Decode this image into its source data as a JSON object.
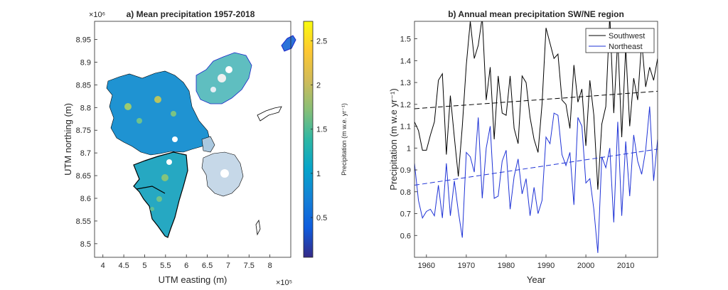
{
  "chart_data": [
    {
      "type": "heatmap",
      "title": "a) Mean precipitation 1957-2018",
      "xlabel": "UTM easting (m)",
      "ylabel": "UTM northing (m)",
      "x_exponent": "×10⁵",
      "y_exponent": "×10⁶",
      "xlim": [
        3.8,
        8.5
      ],
      "ylim": [
        8.47,
        8.99
      ],
      "xticks": [
        "4",
        "4.5",
        "5",
        "5.5",
        "6",
        "6.5",
        "7",
        "7.5",
        "8"
      ],
      "yticks": [
        "8.5",
        "8.55",
        "8.6",
        "8.65",
        "8.7",
        "8.75",
        "8.8",
        "8.85",
        "8.9",
        "8.95"
      ],
      "colorbar": {
        "label": "Precipitation (m w.e. yr⁻¹)",
        "range": [
          0.05,
          2.72
        ],
        "ticks": [
          "0.5",
          "1",
          "1.5",
          "2",
          "2.5"
        ],
        "colormap": "parula",
        "colors": [
          "#352a87",
          "#0f5cdd",
          "#1481d6",
          "#06a4ca",
          "#2eb7a4",
          "#87bf77",
          "#d1bb59",
          "#fec832",
          "#f9fb0e"
        ]
      },
      "grid": false
    },
    {
      "type": "line",
      "title": "b) Annual mean precipitation SW/NE region",
      "xlabel": "Year",
      "ylabel": "Precipitation (m w.e yr⁻¹)",
      "xlim": [
        1957,
        2018
      ],
      "ylim": [
        0.5,
        1.58
      ],
      "xticks": [
        "1960",
        "1970",
        "1980",
        "1990",
        "2000",
        "2010"
      ],
      "yticks": [
        "0.6",
        "0.7",
        "0.8",
        "0.9",
        "1",
        "1.1",
        "1.2",
        "1.3",
        "1.4",
        "1.5"
      ],
      "grid": false,
      "legend_position": "top-right",
      "x": [
        1957,
        1958,
        1959,
        1960,
        1961,
        1962,
        1963,
        1964,
        1965,
        1966,
        1967,
        1968,
        1969,
        1970,
        1971,
        1972,
        1973,
        1974,
        1975,
        1976,
        1977,
        1978,
        1979,
        1980,
        1981,
        1982,
        1983,
        1984,
        1985,
        1986,
        1987,
        1988,
        1989,
        1990,
        1991,
        1992,
        1993,
        1994,
        1995,
        1996,
        1997,
        1998,
        1999,
        2000,
        2001,
        2002,
        2003,
        2004,
        2005,
        2006,
        2007,
        2008,
        2009,
        2010,
        2011,
        2012,
        2013,
        2014,
        2015,
        2016,
        2017,
        2018
      ],
      "series": [
        {
          "name": "Southwest",
          "color": "#000000",
          "values": [
            1.12,
            1.08,
            0.99,
            0.99,
            1.06,
            1.12,
            1.31,
            1.34,
            0.97,
            1.24,
            1.05,
            0.87,
            1.1,
            1.38,
            1.58,
            1.41,
            1.47,
            1.6,
            1.22,
            1.37,
            1.04,
            1.33,
            1.16,
            1.15,
            1.33,
            1.09,
            1.02,
            1.33,
            1.3,
            1.14,
            1.04,
            0.98,
            1.2,
            1.55,
            1.48,
            1.41,
            1.43,
            1.22,
            1.2,
            1.09,
            1.38,
            1.21,
            1.27,
            1.01,
            1.31,
            1.15,
            0.81,
            1.11,
            1.19,
            1.61,
            1.16,
            1.5,
            1.05,
            1.46,
            1.1,
            1.32,
            1.22,
            1.49,
            1.28,
            1.37,
            1.31,
            1.41
          ]
        },
        {
          "name": "Northeast",
          "color": "#1f33d6",
          "values": [
            0.93,
            0.76,
            0.68,
            0.71,
            0.72,
            0.69,
            0.83,
            0.68,
            0.93,
            0.69,
            0.85,
            0.71,
            0.59,
            0.98,
            0.96,
            0.89,
            1.14,
            0.77,
            1.0,
            1.1,
            0.77,
            0.78,
            0.94,
            0.99,
            0.72,
            0.87,
            0.95,
            0.79,
            0.86,
            0.69,
            0.82,
            0.7,
            0.76,
            1.05,
            1.02,
            1.16,
            1.15,
            0.97,
            0.92,
            0.98,
            0.74,
            1.14,
            1.1,
            0.84,
            0.86,
            0.72,
            0.52,
            0.96,
            0.91,
            1.0,
            0.66,
            1.12,
            0.69,
            1.03,
            0.78,
            1.06,
            0.94,
            0.88,
            0.99,
            1.19,
            0.85,
            1.04
          ]
        },
        {
          "name": "",
          "style": "dashed",
          "color": "#000000",
          "values_at_ends": [
            1.18,
            1.26
          ]
        },
        {
          "name": "",
          "style": "dashed",
          "color": "#1f33d6",
          "values_at_ends": [
            0.83,
            0.995
          ]
        }
      ]
    }
  ]
}
